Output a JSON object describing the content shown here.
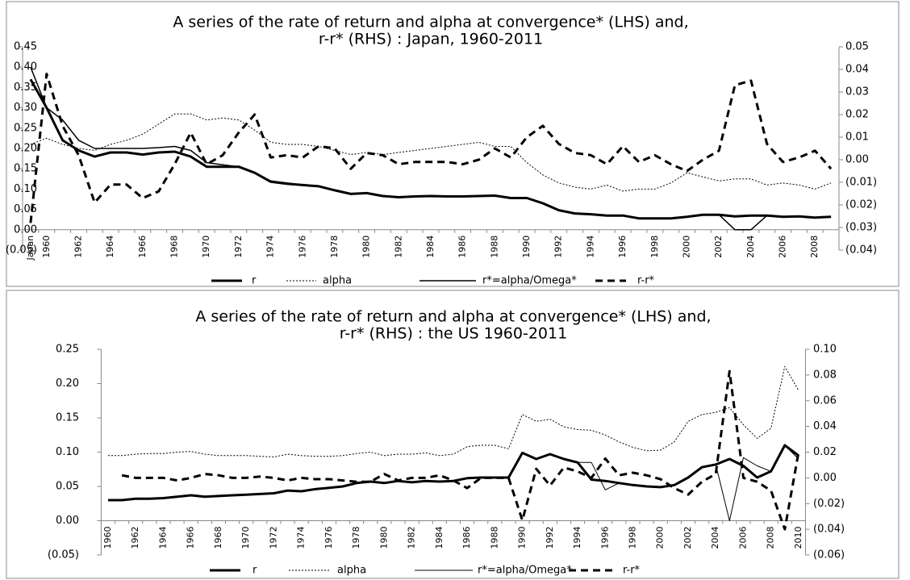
{
  "chart_data": [
    {
      "type": "line",
      "title": [
        "A series of the rate of return and alpha at convergence* (LHS) and,",
        "r-r* (RHS) : Japan, 1960-2011"
      ],
      "categories": [
        "Japan",
        "1960",
        null,
        "1962",
        null,
        "1964",
        null,
        "1966",
        null,
        "1968",
        null,
        "1970",
        null,
        "1972",
        null,
        "1974",
        null,
        "1976",
        null,
        "1978",
        null,
        "1980",
        null,
        "1982",
        null,
        "1984",
        null,
        "1986",
        null,
        "1988",
        null,
        "1990",
        null,
        "1992",
        null,
        "1994",
        null,
        "1996",
        null,
        "1998",
        null,
        "2000",
        null,
        "2002",
        null,
        "2004",
        null,
        "2006",
        null,
        "2008",
        null
      ],
      "ylim": [
        -0.05,
        0.45
      ],
      "yticks": [
        {
          "value": -0.05,
          "label": "(0.05)"
        },
        {
          "value": 0,
          "label": "0.00"
        },
        0.05,
        {
          "value": 0.1,
          "label": "0.10"
        },
        0.15,
        {
          "value": 0.2,
          "label": "0.20"
        },
        0.25,
        {
          "value": 0.3,
          "label": "0.30"
        },
        0.35,
        {
          "value": 0.4,
          "label": "0.40"
        },
        0.45
      ],
      "y2lim": [
        -0.04,
        0.05
      ],
      "y2ticks": [
        {
          "value": -0.04,
          "label": "(0.04)"
        },
        {
          "value": -0.03,
          "label": "(0.03)"
        },
        {
          "value": -0.02,
          "label": "(0.02)"
        },
        {
          "value": -0.01,
          "label": "(0.01)"
        },
        {
          "value": 0,
          "label": "0.00"
        },
        0.01,
        0.02,
        0.03,
        0.04,
        0.05
      ],
      "series": [
        {
          "name": "r",
          "color": "#000000",
          "line_width": 3,
          "dash": "solid",
          "values": [
            0.37,
            0.3,
            0.22,
            0.195,
            0.18,
            0.19,
            0.19,
            0.185,
            0.19,
            0.192,
            0.18,
            0.155,
            0.155,
            0.155,
            0.14,
            0.118,
            0.113,
            0.11,
            0.107,
            0.097,
            0.088,
            0.09,
            0.083,
            0.08,
            0.082,
            0.083,
            0.082,
            0.082,
            0.083,
            0.084,
            0.078,
            0.078,
            0.065,
            0.048,
            0.04,
            0.038,
            0.035,
            0.035,
            0.028,
            0.028,
            0.028,
            0.032,
            0.037,
            0.037,
            0.033,
            0.035,
            0.035,
            0.032,
            0.033,
            0.03,
            0.032
          ]
        },
        {
          "name": "alpha",
          "color": "#000000",
          "line_width": 1,
          "dash": "dotted",
          "values": [
            0.21,
            0.225,
            0.21,
            0.2,
            0.195,
            0.21,
            0.22,
            0.235,
            0.26,
            0.285,
            0.285,
            0.27,
            0.275,
            0.27,
            0.245,
            0.215,
            0.21,
            0.21,
            0.205,
            0.195,
            0.185,
            0.19,
            0.185,
            0.19,
            0.195,
            0.2,
            0.205,
            0.21,
            0.215,
            0.205,
            0.205,
            0.165,
            0.135,
            0.115,
            0.105,
            0.1,
            0.11,
            0.095,
            0.1,
            0.1,
            0.115,
            0.14,
            0.13,
            0.12,
            0.125,
            0.125,
            0.11,
            0.115,
            0.11,
            0.1,
            0.115
          ]
        },
        {
          "name": "r*=alpha/Omega*",
          "color": "#000000",
          "line_width": 1.5,
          "dash": "solid",
          "values": [
            0.4,
            0.3,
            0.27,
            0.22,
            0.2,
            0.2,
            0.2,
            0.2,
            0.202,
            0.205,
            0.195,
            0.165,
            0.16,
            0.155,
            0.14,
            0.12,
            0.115,
            0.11,
            0.107,
            0.097,
            0.088,
            0.09,
            0.083,
            0.08,
            0.082,
            0.083,
            0.082,
            0.082,
            0.083,
            0.084,
            0.078,
            0.078,
            0.065,
            0.048,
            0.04,
            0.038,
            0.035,
            0.035,
            0.028,
            0.028,
            0.028,
            0.032,
            0.037,
            0.037,
            0.0,
            0.0,
            0.035,
            0.032,
            0.033,
            0.03,
            0.032
          ]
        },
        {
          "name": "r-r*",
          "color": "#000000",
          "line_width": 3,
          "dash": "dashed",
          "axis": "y2",
          "values": [
            -0.028,
            0.038,
            0.015,
            0.002,
            -0.019,
            -0.011,
            -0.011,
            -0.017,
            -0.014,
            -0.002,
            0.012,
            -0.002,
            0.002,
            0.012,
            0.02,
            0.001,
            0.002,
            0.001,
            0.006,
            0.005,
            -0.004,
            0.003,
            0.002,
            -0.002,
            -0.001,
            -0.001,
            -0.001,
            -0.002,
            0.0,
            0.005,
            0.001,
            0.01,
            0.015,
            0.007,
            0.003,
            0.002,
            -0.002,
            0.006,
            -0.001,
            0.002,
            -0.002,
            -0.005,
            0.0,
            0.004,
            0.033,
            0.035,
            0.007,
            -0.001,
            0.001,
            0.004,
            -0.004
          ]
        }
      ]
    },
    {
      "type": "line",
      "title": [
        "A series of the rate of return and alpha at convergence* (LHS) and,",
        "r-r* (RHS) : the US 1960-2011"
      ],
      "categories": [
        "1960",
        null,
        "1962",
        null,
        "1964",
        null,
        "1966",
        null,
        "1968",
        null,
        "1970",
        null,
        "1972",
        null,
        "1974",
        null,
        "1976",
        null,
        "1978",
        null,
        "1980",
        null,
        "1982",
        null,
        "1984",
        null,
        "1986",
        null,
        "1988",
        null,
        "1990",
        null,
        "1992",
        null,
        "1994",
        null,
        "1996",
        null,
        "1998",
        null,
        "2000",
        null,
        "2002",
        null,
        "2004",
        null,
        "2006",
        null,
        "2008",
        null,
        "2010"
      ],
      "ylim": [
        -0.05,
        0.25
      ],
      "yticks": [
        {
          "value": -0.05,
          "label": "(0.05)"
        },
        {
          "value": 0,
          "label": "0.00"
        },
        0.05,
        {
          "value": 0.1,
          "label": "0.10"
        },
        0.15,
        {
          "value": 0.2,
          "label": "0.20"
        },
        0.25
      ],
      "y2lim": [
        -0.06,
        0.1
      ],
      "y2ticks": [
        {
          "value": -0.06,
          "label": "(0.06)"
        },
        {
          "value": -0.04,
          "label": "(0.04)"
        },
        {
          "value": -0.02,
          "label": "(0.02)"
        },
        {
          "value": 0,
          "label": "0.00"
        },
        0.02,
        0.04,
        0.06,
        0.08,
        {
          "value": 0.1,
          "label": "0.10"
        }
      ],
      "series": [
        {
          "name": "r",
          "color": "#000000",
          "line_width": 3,
          "dash": "solid",
          "values": [
            0.03,
            0.03,
            0.032,
            0.032,
            0.033,
            0.035,
            0.037,
            0.035,
            0.036,
            0.037,
            0.038,
            0.039,
            0.04,
            0.044,
            0.043,
            0.046,
            0.048,
            0.05,
            0.055,
            0.057,
            0.055,
            0.058,
            0.056,
            0.058,
            0.057,
            0.058,
            0.062,
            0.063,
            0.063,
            0.063,
            0.099,
            0.09,
            0.097,
            0.09,
            0.085,
            0.06,
            0.058,
            0.055,
            0.052,
            0.05,
            0.049,
            0.052,
            0.063,
            0.078,
            0.082,
            0.09,
            0.08,
            0.063,
            0.072,
            0.11,
            0.095
          ]
        },
        {
          "name": "alpha",
          "color": "#000000",
          "line_width": 1,
          "dash": "dotted",
          "values": [
            0.095,
            0.095,
            0.097,
            0.098,
            0.098,
            0.1,
            0.101,
            0.097,
            0.095,
            0.095,
            0.095,
            0.094,
            0.093,
            0.097,
            0.095,
            0.094,
            0.094,
            0.095,
            0.098,
            0.1,
            0.095,
            0.097,
            0.097,
            0.099,
            0.095,
            0.097,
            0.108,
            0.11,
            0.11,
            0.105,
            0.155,
            0.145,
            0.148,
            0.137,
            0.133,
            0.132,
            0.125,
            0.115,
            0.107,
            0.102,
            0.103,
            0.115,
            0.145,
            0.155,
            0.158,
            0.165,
            0.14,
            0.12,
            0.135,
            0.225,
            0.19
          ]
        },
        {
          "name": "r*=alpha/Omega*",
          "color": "#000000",
          "line_width": 1,
          "dash": "solid",
          "values": [
            0.03,
            0.03,
            0.032,
            0.032,
            0.033,
            0.035,
            0.037,
            0.035,
            0.036,
            0.037,
            0.038,
            0.039,
            0.04,
            0.044,
            0.043,
            0.046,
            0.048,
            0.05,
            0.055,
            0.057,
            0.055,
            0.058,
            0.056,
            0.058,
            0.057,
            0.058,
            0.062,
            0.063,
            0.063,
            0.063,
            0.099,
            0.09,
            0.097,
            0.09,
            0.085,
            0.085,
            0.045,
            0.055,
            0.052,
            0.05,
            0.049,
            0.052,
            0.063,
            0.078,
            0.082,
            0.0,
            0.092,
            0.08,
            0.072,
            0.11,
            0.09
          ]
        },
        {
          "name": "r-r*",
          "color": "#000000",
          "line_width": 3,
          "dash": "dashed",
          "axis": "y2",
          "values": [
            null,
            0.002,
            0.0,
            0.0,
            0.0,
            -0.002,
            0.0,
            0.003,
            0.002,
            0.0,
            0.0,
            0.001,
            0.0,
            -0.002,
            0.0,
            -0.001,
            -0.001,
            -0.002,
            -0.003,
            -0.003,
            0.003,
            -0.002,
            0.0,
            0.0,
            0.002,
            -0.002,
            -0.008,
            0.0,
            0.0,
            0.0,
            -0.033,
            0.007,
            -0.006,
            0.008,
            0.005,
            0.0,
            0.015,
            0.002,
            0.004,
            0.002,
            -0.001,
            -0.008,
            -0.013,
            -0.003,
            0.003,
            0.083,
            0.0,
            -0.003,
            -0.01,
            -0.04,
            0.02
          ]
        }
      ]
    }
  ]
}
